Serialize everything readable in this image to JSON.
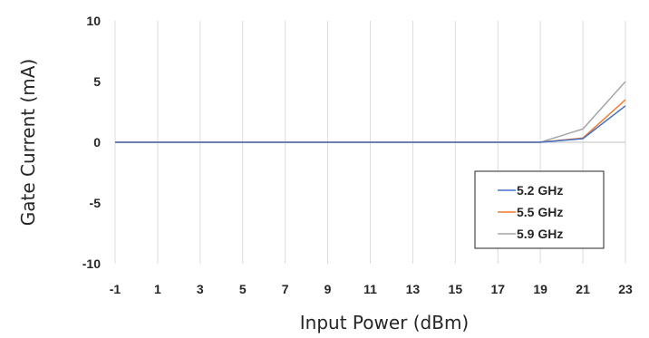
{
  "chart_data": {
    "type": "line",
    "title": "",
    "xlabel": "Input Power (dBm)",
    "ylabel": "Gate Current (mA)",
    "x": [
      -1,
      1,
      3,
      5,
      7,
      9,
      11,
      13,
      15,
      17,
      19,
      21,
      23
    ],
    "xlim": [
      -1,
      23
    ],
    "ylim": [
      -10,
      10
    ],
    "x_ticks": [
      -1,
      1,
      3,
      5,
      7,
      9,
      11,
      13,
      15,
      17,
      19,
      21,
      23
    ],
    "y_ticks": [
      -10,
      -5,
      0,
      5,
      10
    ],
    "grid": "vertical",
    "legend_position": "lower-right",
    "series": [
      {
        "name": "5.2 GHz",
        "color": "#4472C4",
        "values": [
          0,
          0,
          0,
          0,
          0,
          0,
          0,
          0,
          0,
          0,
          0,
          0.3,
          3.0
        ]
      },
      {
        "name": "5.5 GHz",
        "color": "#ED7D31",
        "values": [
          0,
          0,
          0,
          0,
          0,
          0,
          0,
          0,
          0,
          0,
          0,
          0.35,
          3.5
        ]
      },
      {
        "name": "5.9 GHz",
        "color": "#A5A5A5",
        "values": [
          0,
          0,
          0,
          0,
          0,
          0,
          0,
          0,
          0,
          0,
          0,
          1.1,
          5.0
        ]
      }
    ]
  }
}
